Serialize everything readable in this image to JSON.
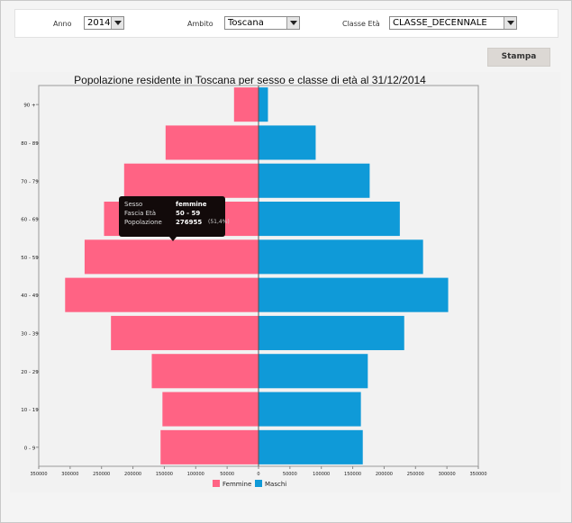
{
  "filters": {
    "anno_label": "Anno",
    "anno_value": "2014",
    "ambito_label": "Ambito",
    "ambito_value": "Toscana",
    "classe_label": "Classe Età",
    "classe_value": "CLASSE_DECENNALE"
  },
  "toolbar": {
    "stampa_label": "Stampa"
  },
  "tooltip": {
    "sesso_label": "Sesso",
    "sesso_value": "femmine",
    "fascia_label": "Fascia Età",
    "fascia_value": "50 - 59",
    "popolazione_label": "Popolazione",
    "popolazione_value": "276955",
    "popolazione_pct": "(51,4%)"
  },
  "colors": {
    "femmine": "#ff6384",
    "maschi": "#0f9ad8"
  },
  "chart_data": {
    "type": "bar",
    "orientation": "horizontal",
    "title": "Popolazione residente in Toscana per sesso e classe di età al 31/12/2014",
    "categories": [
      "0 - 9",
      "10 - 19",
      "20 - 29",
      "30 - 39",
      "40 - 49",
      "50 - 59",
      "60 - 69",
      "70 - 79",
      "80 - 89",
      "90 +"
    ],
    "series": [
      {
        "name": "Femmine",
        "values": [
          -156000,
          -153000,
          -170000,
          -235000,
          -308000,
          -276955,
          -246000,
          -214000,
          -148000,
          -39000
        ]
      },
      {
        "name": "Maschi",
        "values": [
          166000,
          163000,
          174000,
          232000,
          302000,
          262000,
          225000,
          177000,
          91000,
          15000
        ]
      }
    ],
    "xlim": [
      -350000,
      350000
    ],
    "xticks": [
      -350000,
      -300000,
      -250000,
      -200000,
      -150000,
      -100000,
      -50000,
      0,
      50000,
      100000,
      150000,
      200000,
      250000,
      300000,
      350000
    ],
    "xtick_labels": [
      "350000",
      "300000",
      "250000",
      "200000",
      "150000",
      "100000",
      "50000",
      "0",
      "50000",
      "100000",
      "150000",
      "200000",
      "250000",
      "300000",
      "350000"
    ],
    "legend": [
      "Femmine",
      "Maschi"
    ],
    "legend_position": "bottom",
    "grid": false
  }
}
